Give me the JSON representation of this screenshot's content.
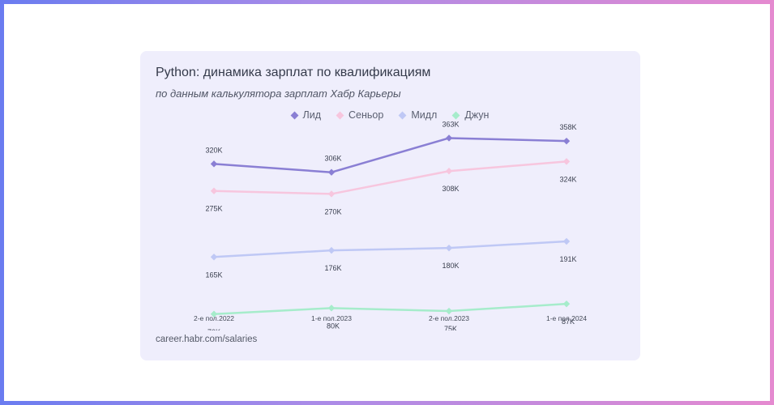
{
  "chart_data": {
    "type": "line",
    "title": "Python: динамика зарплат по квалификациям",
    "subtitle": "по данным калькулятора зарплат Хабр Карьеры",
    "source": "career.habr.com/salaries",
    "categories": [
      "2-е пол.2022",
      "1-е пол.2023",
      "2-е пол.2023",
      "1-е пол.2024"
    ],
    "legend_position": "top",
    "grid": false,
    "ylim": [
      40,
      400
    ],
    "series": [
      {
        "name": "Лид",
        "color": "#8a7fd4",
        "values": [
          320,
          306,
          363,
          358
        ],
        "labels": [
          "320K",
          "306K",
          "363K",
          "358K"
        ],
        "label_pos": [
          "above",
          "above",
          "above",
          "above"
        ]
      },
      {
        "name": "Сеньор",
        "color": "#f7c6de",
        "values": [
          275,
          270,
          308,
          324
        ],
        "labels": [
          "275K",
          "270K",
          "308K",
          "324K"
        ],
        "label_pos": [
          "below",
          "below",
          "below",
          "below"
        ]
      },
      {
        "name": "Мидл",
        "color": "#bfc8f5",
        "values": [
          165,
          176,
          180,
          191
        ],
        "labels": [
          "165K",
          "176K",
          "180K",
          "191K"
        ],
        "label_pos": [
          "below",
          "below",
          "below",
          "below"
        ]
      },
      {
        "name": "Джун",
        "color": "#a6eccb",
        "values": [
          70,
          80,
          75,
          87
        ],
        "labels": [
          "70K",
          "80K",
          "75K",
          "87K"
        ],
        "label_pos": [
          "below",
          "below",
          "below",
          "below"
        ]
      }
    ]
  }
}
